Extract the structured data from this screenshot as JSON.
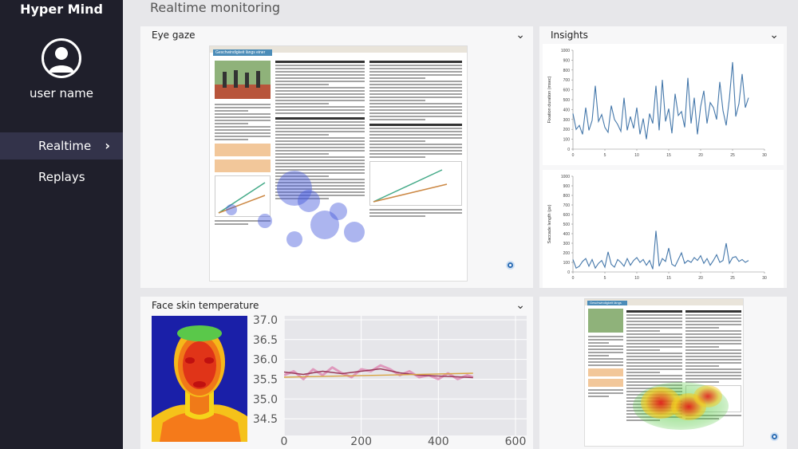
{
  "app": {
    "title": "Hyper Mind"
  },
  "user": {
    "name": "user name"
  },
  "nav": {
    "items": [
      {
        "label": "Realtime",
        "active": true
      },
      {
        "label": "Replays",
        "active": false
      }
    ]
  },
  "page": {
    "title": "Realtime monitoring"
  },
  "panels": {
    "eye_gaze": {
      "title": "Eye gaze"
    },
    "insights": {
      "title": "Insights"
    },
    "face_temp": {
      "title": "Face skin temperature"
    }
  },
  "document": {
    "heading": "Geschwindigkeit längs einer Geraden"
  },
  "colors": {
    "sidebar": "#1f1f2b",
    "active_nav": "#33334a",
    "accent": "#2f6fb5",
    "line": "#4477aa"
  },
  "chart_data": [
    {
      "type": "line",
      "ylabel": "Fixation duration (msec)",
      "xlim": [
        0,
        30
      ],
      "ylim": [
        0,
        1000
      ],
      "xticks": [
        0,
        5,
        10,
        15,
        20,
        25,
        30
      ],
      "yticks": [
        0,
        100,
        200,
        300,
        400,
        500,
        600,
        700,
        800,
        900,
        1000
      ],
      "x": [
        0,
        0.5,
        1,
        1.5,
        2,
        2.5,
        3,
        3.5,
        4,
        4.5,
        5,
        5.5,
        6,
        6.5,
        7,
        7.5,
        8,
        8.5,
        9,
        9.5,
        10,
        10.5,
        11,
        11.5,
        12,
        12.5,
        13,
        13.5,
        14,
        14.5,
        15,
        15.5,
        16,
        16.5,
        17,
        17.5,
        18,
        18.5,
        19,
        19.5,
        20,
        20.5,
        21,
        21.5,
        22,
        22.5,
        23,
        23.5,
        24,
        24.5,
        25,
        25.5,
        26,
        26.5,
        27,
        27.5
      ],
      "y": [
        360,
        200,
        240,
        150,
        420,
        190,
        290,
        640,
        280,
        350,
        220,
        170,
        440,
        300,
        250,
        180,
        520,
        190,
        330,
        210,
        420,
        150,
        310,
        100,
        360,
        260,
        640,
        190,
        700,
        280,
        410,
        160,
        560,
        340,
        380,
        220,
        720,
        260,
        520,
        150,
        430,
        590,
        260,
        470,
        420,
        300,
        680,
        390,
        240,
        510,
        880,
        330,
        460,
        760,
        420,
        520
      ]
    },
    {
      "type": "line",
      "ylabel": "Saccade length (px)",
      "xlim": [
        0,
        30
      ],
      "ylim": [
        0,
        1000
      ],
      "xticks": [
        0,
        5,
        10,
        15,
        20,
        25,
        30
      ],
      "yticks": [
        0,
        100,
        200,
        300,
        400,
        500,
        600,
        700,
        800,
        900,
        1000
      ],
      "x": [
        0,
        0.5,
        1,
        1.5,
        2,
        2.5,
        3,
        3.5,
        4,
        4.5,
        5,
        5.5,
        6,
        6.5,
        7,
        7.5,
        8,
        8.5,
        9,
        9.5,
        10,
        10.5,
        11,
        11.5,
        12,
        12.5,
        13,
        13.5,
        14,
        14.5,
        15,
        15.5,
        16,
        16.5,
        17,
        17.5,
        18,
        18.5,
        19,
        19.5,
        20,
        20.5,
        21,
        21.5,
        22,
        22.5,
        23,
        23.5,
        24,
        24.5,
        25,
        25.5,
        26,
        26.5,
        27,
        27.5
      ],
      "y": [
        130,
        40,
        60,
        110,
        140,
        60,
        130,
        40,
        90,
        120,
        50,
        210,
        80,
        50,
        130,
        100,
        60,
        140,
        70,
        120,
        150,
        100,
        130,
        70,
        120,
        30,
        430,
        60,
        140,
        110,
        250,
        80,
        60,
        130,
        200,
        90,
        120,
        100,
        150,
        120,
        170,
        90,
        140,
        70,
        120,
        180,
        100,
        120,
        300,
        90,
        150,
        160,
        110,
        130,
        100,
        120
      ]
    },
    {
      "type": "line",
      "xlim": [
        0,
        600
      ],
      "ylim": [
        34.2,
        37.1
      ],
      "xticks": [
        0,
        200,
        400,
        600
      ],
      "yticks": [
        34.5,
        35.0,
        35.5,
        36.0,
        36.5,
        37.0
      ],
      "grid": true,
      "series": [
        {
          "style": "raw",
          "x": [
            0,
            25,
            50,
            75,
            100,
            125,
            150,
            175,
            200,
            225,
            250,
            275,
            300,
            325,
            350,
            375,
            400,
            425,
            450,
            475,
            490
          ],
          "y": [
            35.6,
            35.7,
            35.5,
            35.75,
            35.6,
            35.8,
            35.65,
            35.55,
            35.75,
            35.7,
            35.85,
            35.75,
            35.6,
            35.7,
            35.55,
            35.6,
            35.5,
            35.65,
            35.5,
            35.6,
            35.55
          ]
        },
        {
          "style": "smoothed",
          "x": [
            0,
            50,
            100,
            150,
            200,
            250,
            300,
            350,
            400,
            450,
            490
          ],
          "y": [
            35.68,
            35.62,
            35.7,
            35.64,
            35.7,
            35.76,
            35.66,
            35.6,
            35.58,
            35.56,
            35.54
          ]
        },
        {
          "style": "trend",
          "x": [
            0,
            490
          ],
          "y": [
            35.55,
            35.65
          ]
        }
      ]
    }
  ]
}
